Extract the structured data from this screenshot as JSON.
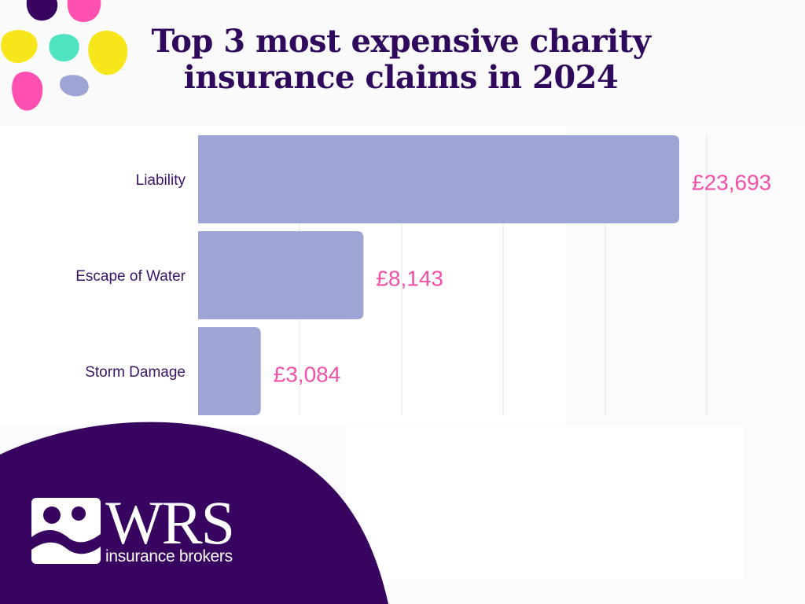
{
  "header": {
    "title_line1": "Top 3 most expensive charity",
    "title_line2": "insurance claims in 2024"
  },
  "chart_data": {
    "type": "bar",
    "orientation": "horizontal",
    "title": "Top 3 most expensive charity insurance claims in 2024",
    "categories": [
      "Liability",
      "Escape of Water",
      "Storm Damage"
    ],
    "values": [
      23693,
      8143,
      3084
    ],
    "value_labels": [
      "£23,693",
      "£8,143",
      "£3,084"
    ],
    "xlim": [
      0,
      25000
    ],
    "grid": true,
    "legend": false
  },
  "colors": {
    "bar": "#9ea4d4",
    "value_label": "#f050a8",
    "title": "#2f0a5c",
    "brand_purple": "#37045f",
    "confetti": [
      "#f7e61c",
      "#ff4fb0",
      "#4fe3c1",
      "#9ea4d4",
      "#37045f"
    ]
  },
  "brand": {
    "logo_text": "WRS",
    "tagline": "insurance brokers",
    "icon": "wrs-figure-wave-icon"
  }
}
